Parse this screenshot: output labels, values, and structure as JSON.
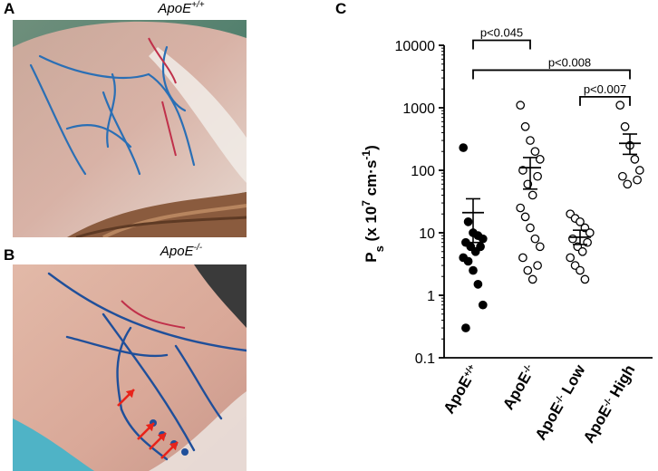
{
  "panels": {
    "a": {
      "label": "A",
      "title_base": "ApoE",
      "title_sup": "+/+"
    },
    "b": {
      "label": "B",
      "title_base": "ApoE",
      "title_sup": "-/-"
    },
    "c": {
      "label": "C"
    }
  },
  "arrow_color": "#e8231a",
  "chart_data": {
    "type": "scatter",
    "yscale": "log",
    "ylim": [
      0.1,
      10000
    ],
    "ylabel": "Ps (x 10^7 cm·s^-1)",
    "ylabel_parts": {
      "main": "P",
      "sub": "s",
      "rest1": " (x 10",
      "sup1": "7",
      "rest2": " cm·s",
      "sup2": "-1",
      "rest3": ")"
    },
    "yticks": [
      "0.1",
      "1",
      "10",
      "100",
      "1000",
      "10000"
    ],
    "categories": [
      {
        "base": "ApoE",
        "sup": "+/+",
        "suffix": ""
      },
      {
        "base": "ApoE",
        "sup": "-/-",
        "suffix": ""
      },
      {
        "base": "ApoE",
        "sup": "-/-",
        "suffix": " Low"
      },
      {
        "base": "ApoE",
        "sup": "-/-",
        "suffix": " High"
      }
    ],
    "series": [
      {
        "filled": true,
        "values": [
          230,
          15,
          10,
          9,
          8,
          7,
          6,
          6,
          5,
          4,
          3.5,
          2.5,
          1.5,
          0.7,
          0.3
        ],
        "mean": 21,
        "err_low": 7,
        "err_high": 35
      },
      {
        "filled": false,
        "values": [
          1100,
          500,
          300,
          200,
          150,
          100,
          80,
          60,
          40,
          25,
          18,
          12,
          8,
          6,
          4,
          3,
          2.5,
          1.8
        ],
        "mean": 110,
        "err_low": 50,
        "err_high": 160
      },
      {
        "filled": false,
        "values": [
          20,
          17,
          15,
          12,
          10,
          8,
          7,
          6,
          5,
          4,
          3,
          2.5,
          1.8
        ],
        "mean": 8.5,
        "err_low": 6.5,
        "err_high": 11
      },
      {
        "filled": false,
        "values": [
          1100,
          500,
          250,
          150,
          100,
          80,
          70,
          60
        ],
        "mean": 270,
        "err_low": 180,
        "err_high": 380
      }
    ],
    "comparisons": [
      {
        "from": 0,
        "to": 1,
        "label": "p<0.045",
        "y": 12000
      },
      {
        "from": 0,
        "to": 3,
        "label": "p<0.008",
        "y": 4000
      },
      {
        "from": 2,
        "to": 3,
        "label": "p<0.007",
        "y": 1500
      }
    ]
  }
}
